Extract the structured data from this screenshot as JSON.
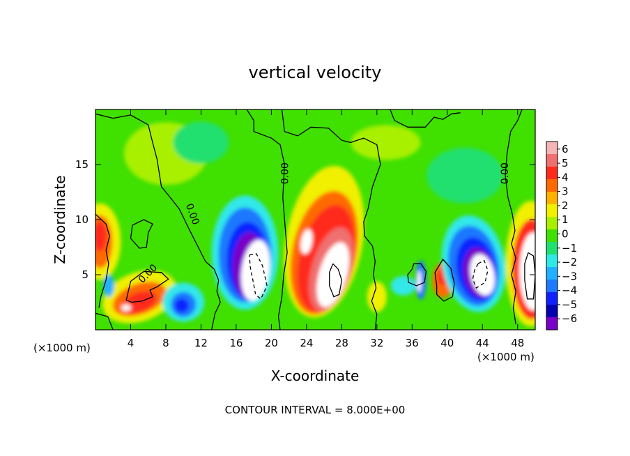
{
  "chart_data": {
    "type": "heatmap",
    "title": "vertical velocity",
    "xlabel": "X-coordinate",
    "ylabel": "Z-coordinate",
    "x_unit": "(×1000 m)",
    "y_unit": "(×1000 m)",
    "footer": "CONTOUR INTERVAL = 8.000E+00",
    "xlim": [
      0,
      50
    ],
    "ylim": [
      0,
      20
    ],
    "x_ticks": [
      4,
      8,
      12,
      16,
      20,
      24,
      28,
      32,
      36,
      40,
      44,
      48
    ],
    "y_ticks": [
      5,
      10,
      15
    ],
    "contour_labels": [
      "0.00",
      "0.00",
      "0.00",
      "0.00"
    ],
    "colorbar": {
      "ticks": [
        "6",
        "5",
        "4",
        "3",
        "2",
        "1",
        "0",
        "−1",
        "−2",
        "−3",
        "−4",
        "−5",
        "−6"
      ],
      "colors": [
        "#f5b5b5",
        "#f07070",
        "#ff2a1a",
        "#ff6a00",
        "#ffb000",
        "#f0f000",
        "#a8f000",
        "#40e000",
        "#20e070",
        "#30e8e8",
        "#20b0ff",
        "#1f78ff",
        "#1020ff",
        "#0000b0",
        "#7a00c8"
      ]
    },
    "features": [
      {
        "kind": "updraft",
        "x": 0.5,
        "z": 8,
        "strength": 5
      },
      {
        "kind": "updraft",
        "x": 5,
        "z": 2.5,
        "strength": 6
      },
      {
        "kind": "updraft",
        "x": 26,
        "z": 6,
        "strength": 6
      },
      {
        "kind": "updraft",
        "x": 49,
        "z": 5,
        "strength": 6
      },
      {
        "kind": "downdraft",
        "x": 17,
        "z": 6.5,
        "strength": -6
      },
      {
        "kind": "downdraft",
        "x": 10,
        "z": 2.5,
        "strength": -4
      },
      {
        "kind": "downdraft",
        "x": 43,
        "z": 5.5,
        "strength": -6
      },
      {
        "kind": "downdraft",
        "x": 36.5,
        "z": 4.5,
        "strength": -3
      }
    ]
  }
}
